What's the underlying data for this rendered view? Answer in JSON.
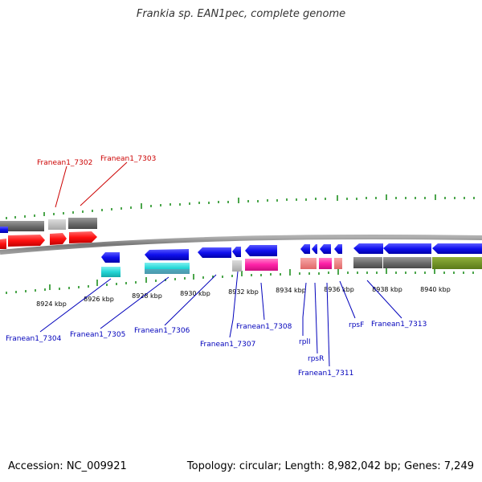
{
  "title": "Frankia sp. EAN1pec, complete genome",
  "footer": {
    "accession": "Accession: NC_009921",
    "stats": "Topology: circular; Length: 8,982,042 bp; Genes: 7,249"
  },
  "colors": {
    "backbone": "#8c8c8c",
    "tick": "#118811",
    "top_label": "#cc0000",
    "bottom_label": "#0000bb"
  },
  "kbp_labels": [
    "8924 kbp",
    "8926 kbp",
    "8928 kbp",
    "8930 kbp",
    "8932 kbp",
    "8934 kbp",
    "8936 kbp",
    "8938 kbp",
    "8940 kbp"
  ],
  "gene_labels_top": [
    "Franean1_7302",
    "Franean1_7303"
  ],
  "gene_labels_bottom": [
    "Franean1_7304",
    "Franean1_7305",
    "Franean1_7306",
    "Franean1_7307",
    "Franean1_7308",
    "rplI",
    "rpsR",
    "Franean1_7311",
    "rpsF",
    "Franean1_7313"
  ]
}
